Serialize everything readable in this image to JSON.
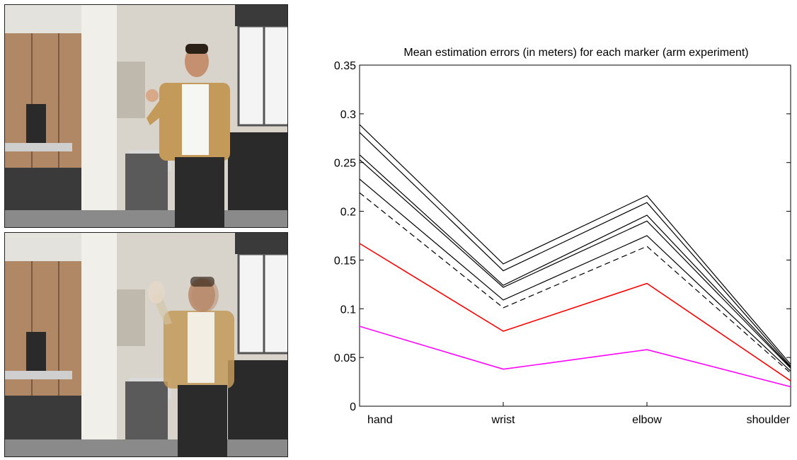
{
  "photos": [
    {
      "description": "man-standing-arm-raised"
    },
    {
      "description": "man-moving-arm-blurred"
    }
  ],
  "chart_data": {
    "type": "line",
    "title": "Mean estimation errors (in meters) for each marker (arm experiment)",
    "categories": [
      "hand",
      "wrist",
      "elbow",
      "shoulder"
    ],
    "ylim": [
      0,
      0.35
    ],
    "yticks": [
      "0",
      "0.05",
      "0.1",
      "0.15",
      "0.2",
      "0.25",
      "0.3",
      "0.35"
    ],
    "grid": false,
    "series": [
      {
        "values": [
          0.289,
          0.146,
          0.216,
          0.043
        ],
        "color": "#000000",
        "dash": "solid"
      },
      {
        "values": [
          0.281,
          0.139,
          0.209,
          0.041
        ],
        "color": "#000000",
        "dash": "solid"
      },
      {
        "values": [
          0.258,
          0.124,
          0.196,
          0.04
        ],
        "color": "#000000",
        "dash": "solid"
      },
      {
        "values": [
          0.253,
          0.122,
          0.19,
          0.039
        ],
        "color": "#000000",
        "dash": "solid"
      },
      {
        "values": [
          0.233,
          0.109,
          0.175,
          0.036
        ],
        "color": "#000000",
        "dash": "solid"
      },
      {
        "values": [
          0.219,
          0.101,
          0.164,
          0.034
        ],
        "color": "#000000",
        "dash": "dashed"
      },
      {
        "values": [
          0.167,
          0.077,
          0.126,
          0.026
        ],
        "color": "#ff0000",
        "dash": "solid"
      },
      {
        "values": [
          0.082,
          0.038,
          0.058,
          0.02
        ],
        "color": "#ff00ff",
        "dash": "solid"
      }
    ]
  }
}
